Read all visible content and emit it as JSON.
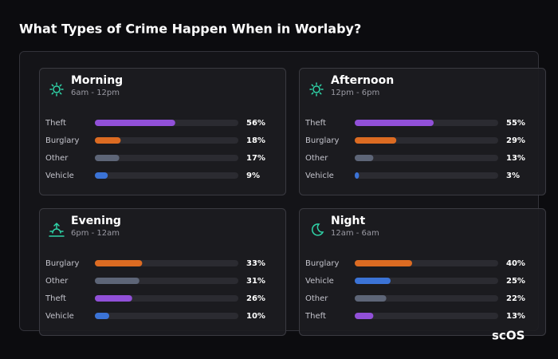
{
  "title": "What Types of Crime Happen When in Worlaby?",
  "brand": "scOS",
  "chart_data": [
    {
      "type": "bar",
      "title": "Morning",
      "subtitle": "6am - 12pm",
      "categories": [
        "Theft",
        "Burglary",
        "Other",
        "Vehicle"
      ],
      "values": [
        56,
        18,
        17,
        9
      ],
      "value_labels": [
        "56%",
        "18%",
        "17%",
        "9%"
      ],
      "colors": [
        "#9150d8",
        "#dc6b22",
        "#5d6577",
        "#3b73d6"
      ],
      "xlim": [
        0,
        100
      ]
    },
    {
      "type": "bar",
      "title": "Afternoon",
      "subtitle": "12pm - 6pm",
      "categories": [
        "Theft",
        "Burglary",
        "Other",
        "Vehicle"
      ],
      "values": [
        55,
        29,
        13,
        3
      ],
      "value_labels": [
        "55%",
        "29%",
        "13%",
        "3%"
      ],
      "colors": [
        "#9150d8",
        "#dc6b22",
        "#5d6577",
        "#3b73d6"
      ],
      "xlim": [
        0,
        100
      ]
    },
    {
      "type": "bar",
      "title": "Evening",
      "subtitle": "6pm - 12am",
      "categories": [
        "Burglary",
        "Other",
        "Theft",
        "Vehicle"
      ],
      "values": [
        33,
        31,
        26,
        10
      ],
      "value_labels": [
        "33%",
        "31%",
        "26%",
        "10%"
      ],
      "colors": [
        "#dc6b22",
        "#5d6577",
        "#9150d8",
        "#3b73d6"
      ],
      "xlim": [
        0,
        100
      ]
    },
    {
      "type": "bar",
      "title": "Night",
      "subtitle": "12am - 6am",
      "categories": [
        "Burglary",
        "Vehicle",
        "Other",
        "Theft"
      ],
      "values": [
        40,
        25,
        22,
        13
      ],
      "value_labels": [
        "40%",
        "25%",
        "22%",
        "13%"
      ],
      "colors": [
        "#dc6b22",
        "#3b73d6",
        "#5d6577",
        "#9150d8"
      ],
      "xlim": [
        0,
        100
      ]
    }
  ]
}
